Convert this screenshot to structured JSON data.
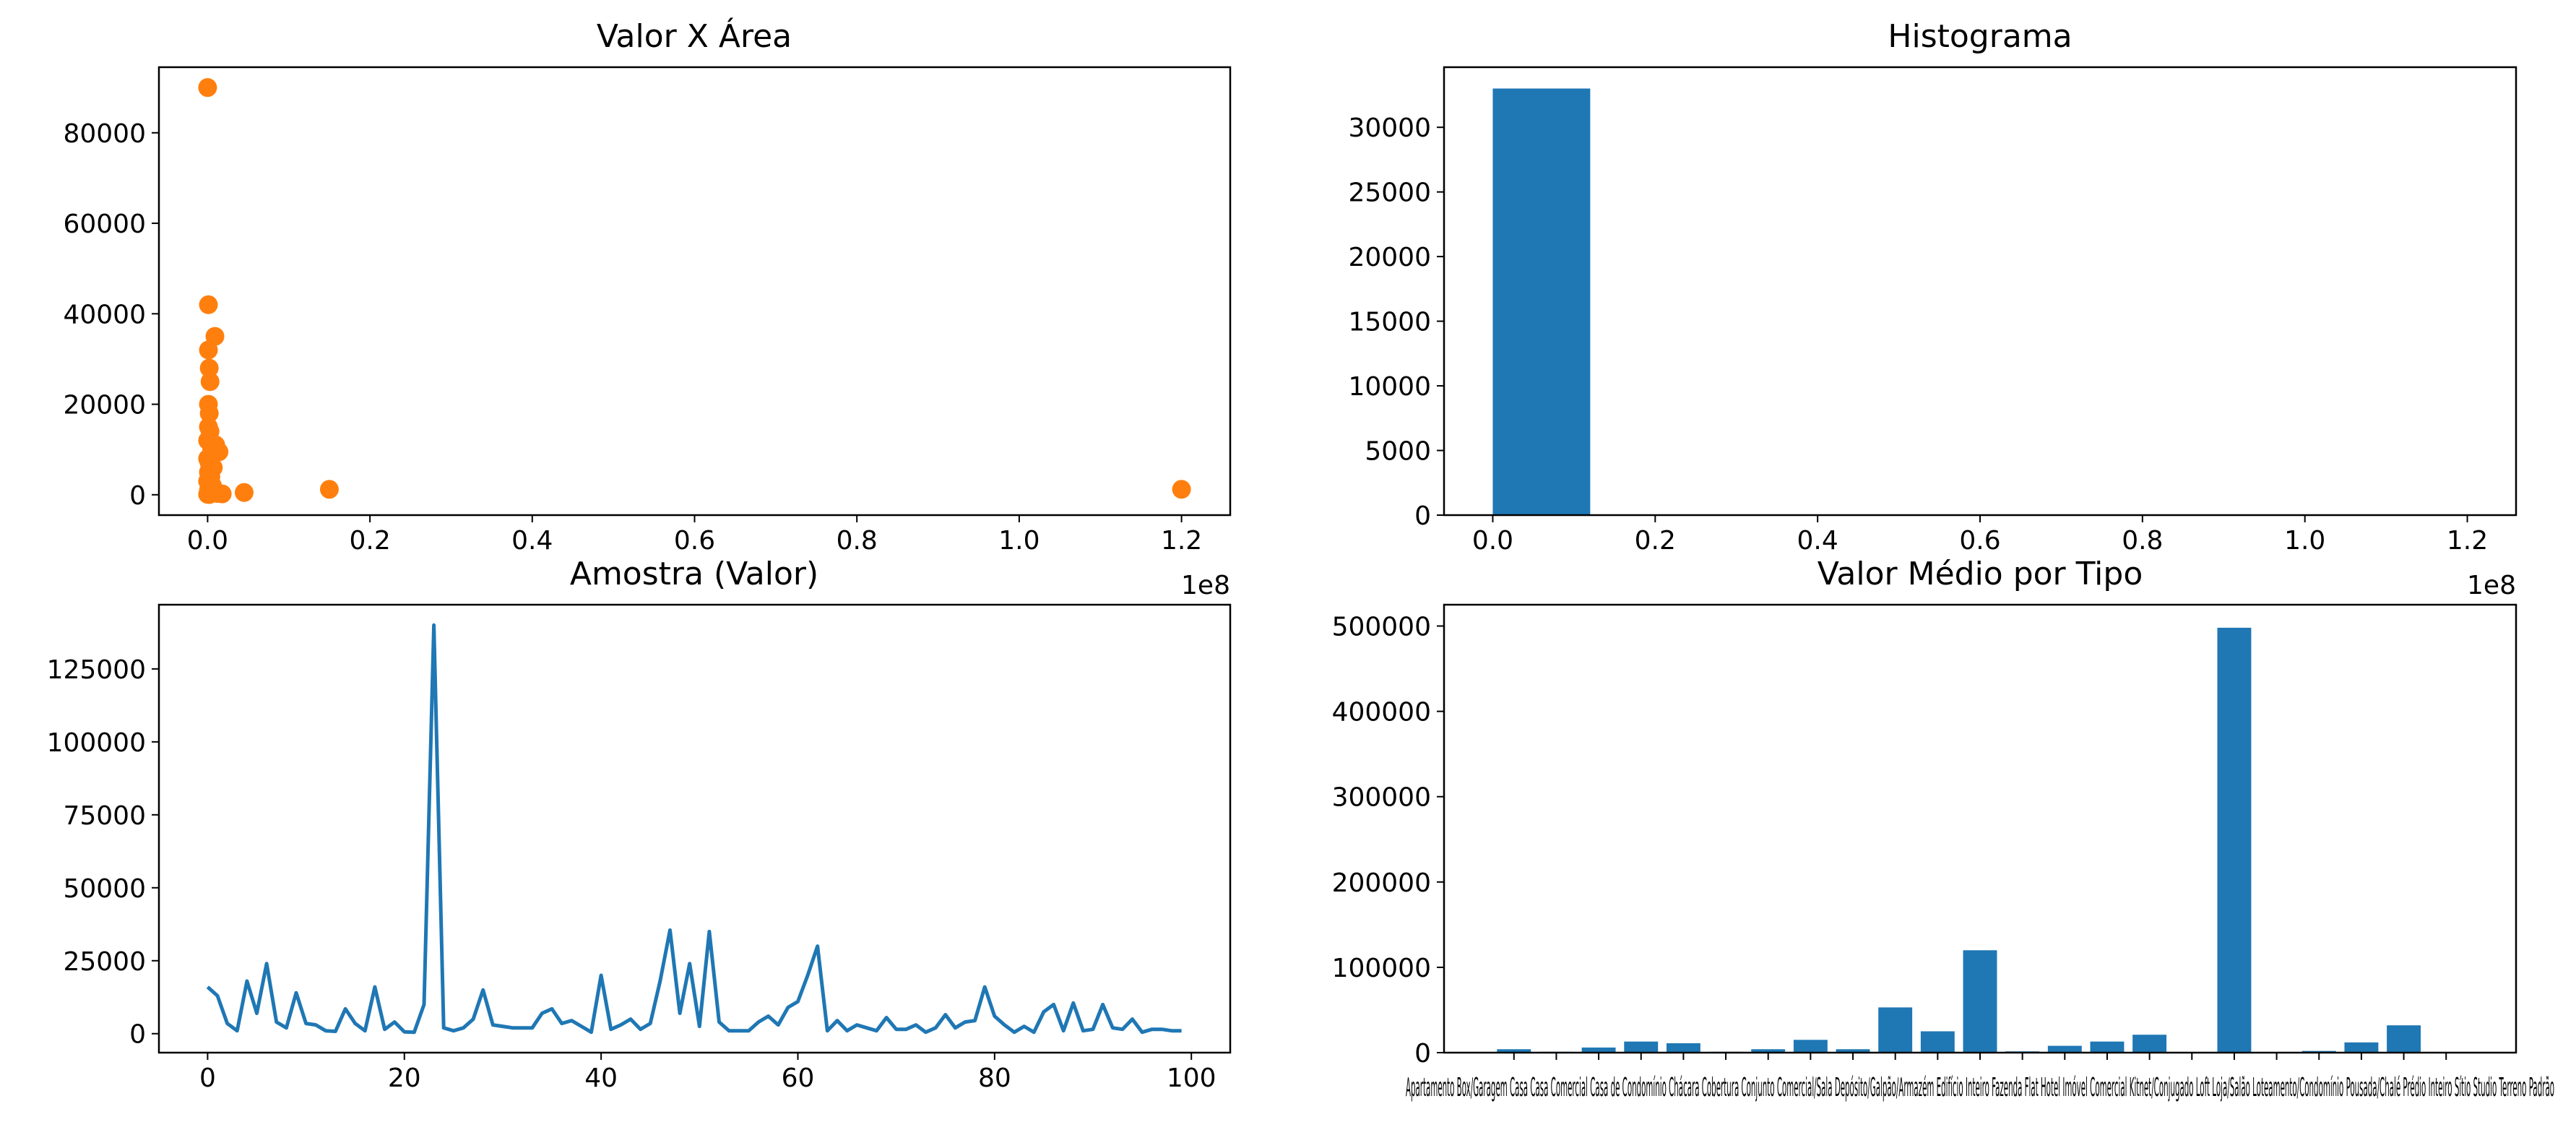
{
  "chart_data": [
    {
      "type": "scatter",
      "title": "Valor X Área",
      "xlabel": "",
      "ylabel": "",
      "color": "#ff7f0e",
      "x_multiplier_label": "1e8",
      "xlim": [
        -0.06,
        1.26
      ],
      "ylim": [
        -4500,
        94500
      ],
      "xticks": [
        0.0,
        0.2,
        0.4,
        0.6,
        0.8,
        1.0,
        1.2
      ],
      "xtick_labels": [
        "0.0",
        "0.2",
        "0.4",
        "0.6",
        "0.8",
        "1.0",
        "1.2"
      ],
      "yticks": [
        0,
        20000,
        40000,
        60000,
        80000
      ],
      "ytick_labels": [
        "0",
        "20000",
        "40000",
        "60000",
        "80000"
      ],
      "points": [
        {
          "x": 0.0,
          "y": 90000
        },
        {
          "x": 0.001,
          "y": 42000
        },
        {
          "x": 0.009,
          "y": 35000
        },
        {
          "x": 0.001,
          "y": 32000
        },
        {
          "x": 0.002,
          "y": 28000
        },
        {
          "x": 0.003,
          "y": 25000
        },
        {
          "x": 0.001,
          "y": 20000
        },
        {
          "x": 0.002,
          "y": 18000
        },
        {
          "x": 0.001,
          "y": 15000
        },
        {
          "x": 0.003,
          "y": 14000
        },
        {
          "x": 0.0,
          "y": 12000
        },
        {
          "x": 0.01,
          "y": 11000
        },
        {
          "x": 0.014,
          "y": 9500
        },
        {
          "x": 0.005,
          "y": 10000
        },
        {
          "x": 0.0,
          "y": 8000
        },
        {
          "x": 0.002,
          "y": 7000
        },
        {
          "x": 0.007,
          "y": 6000
        },
        {
          "x": 0.001,
          "y": 5000
        },
        {
          "x": 0.004,
          "y": 4000
        },
        {
          "x": 0.0,
          "y": 3000
        },
        {
          "x": 0.006,
          "y": 2000
        },
        {
          "x": 0.003,
          "y": 1500
        },
        {
          "x": 0.001,
          "y": 1000
        },
        {
          "x": 0.009,
          "y": 600
        },
        {
          "x": 0.012,
          "y": 300
        },
        {
          "x": 0.0,
          "y": 100
        },
        {
          "x": 0.002,
          "y": 50
        },
        {
          "x": 0.018,
          "y": 200
        },
        {
          "x": 0.045,
          "y": 500
        },
        {
          "x": 0.15,
          "y": 1200
        },
        {
          "x": 1.2,
          "y": 1200
        }
      ]
    },
    {
      "type": "bar",
      "title": "Histograma",
      "xlabel": "",
      "ylabel": "",
      "color": "#1f77b4",
      "x_multiplier_label": "1e8",
      "xlim": [
        -0.06,
        1.26
      ],
      "ylim": [
        0,
        34650
      ],
      "xticks": [
        0.0,
        0.2,
        0.4,
        0.6,
        0.8,
        1.0,
        1.2
      ],
      "xtick_labels": [
        "0.0",
        "0.2",
        "0.4",
        "0.6",
        "0.8",
        "1.0",
        "1.2"
      ],
      "yticks": [
        0,
        5000,
        10000,
        15000,
        20000,
        25000,
        30000
      ],
      "ytick_labels": [
        "0",
        "5000",
        "10000",
        "15000",
        "20000",
        "25000",
        "30000"
      ],
      "bins": [
        {
          "start": 0.0,
          "end": 0.12,
          "count": 33000
        },
        {
          "start": 0.12,
          "end": 0.24,
          "count": 1
        },
        {
          "start": 0.24,
          "end": 0.36,
          "count": 0
        },
        {
          "start": 0.36,
          "end": 0.48,
          "count": 0
        },
        {
          "start": 0.48,
          "end": 0.6,
          "count": 0
        },
        {
          "start": 0.6,
          "end": 0.72,
          "count": 0
        },
        {
          "start": 0.72,
          "end": 0.84,
          "count": 0
        },
        {
          "start": 0.84,
          "end": 0.96,
          "count": 0
        },
        {
          "start": 0.96,
          "end": 1.08,
          "count": 0
        },
        {
          "start": 1.08,
          "end": 1.2,
          "count": 1
        }
      ]
    },
    {
      "type": "line",
      "title": "Amostra (Valor)",
      "xlabel": "",
      "ylabel": "",
      "color": "#1f77b4",
      "xlim": [
        -4.95,
        103.95
      ],
      "ylim": [
        -6500,
        147000
      ],
      "xticks": [
        0,
        20,
        40,
        60,
        80,
        100
      ],
      "xtick_labels": [
        "0",
        "20",
        "40",
        "60",
        "80",
        "100"
      ],
      "yticks": [
        0,
        25000,
        50000,
        75000,
        100000,
        125000
      ],
      "ytick_labels": [
        "0",
        "25000",
        "50000",
        "75000",
        "100000",
        "125000"
      ],
      "x": [
        0,
        1,
        2,
        3,
        4,
        5,
        6,
        7,
        8,
        9,
        10,
        11,
        12,
        13,
        14,
        15,
        16,
        17,
        18,
        19,
        20,
        21,
        22,
        23,
        24,
        25,
        26,
        27,
        28,
        29,
        30,
        31,
        32,
        33,
        34,
        35,
        36,
        37,
        38,
        39,
        40,
        41,
        42,
        43,
        44,
        45,
        46,
        47,
        48,
        49,
        50,
        51,
        52,
        53,
        54,
        55,
        56,
        57,
        58,
        59,
        60,
        61,
        62,
        63,
        64,
        65,
        66,
        67,
        68,
        69,
        70,
        71,
        72,
        73,
        74,
        75,
        76,
        77,
        78,
        79,
        80,
        81,
        82,
        83,
        84,
        85,
        86,
        87,
        88,
        89,
        90,
        91,
        92,
        93,
        94,
        95,
        96,
        97,
        98,
        99
      ],
      "y": [
        16000,
        13000,
        3500,
        1000,
        18000,
        7000,
        24000,
        4000,
        2000,
        14000,
        3500,
        3000,
        1000,
        800,
        8500,
        3500,
        1000,
        16000,
        1500,
        4000,
        600,
        500,
        10000,
        140000,
        2000,
        1000,
        2000,
        5000,
        15000,
        3000,
        2500,
        2000,
        2000,
        2000,
        7000,
        8500,
        3500,
        4500,
        2500,
        500,
        20000,
        1500,
        3000,
        5000,
        1500,
        3500,
        18000,
        35500,
        7000,
        24000,
        2500,
        35000,
        4000,
        1000,
        1000,
        1000,
        4000,
        6000,
        3000,
        9000,
        11000,
        20000,
        30000,
        1000,
        4500,
        1000,
        3000,
        2000,
        1000,
        5500,
        1500,
        1500,
        3000,
        500,
        2000,
        6500,
        2000,
        4000,
        4500,
        16000,
        6000,
        3000,
        500,
        2500,
        500,
        7500,
        10000,
        1000,
        10500,
        1000,
        1500,
        10000,
        2000,
        1500,
        5000,
        500,
        1500,
        1500,
        1000,
        1000
      ]
    },
    {
      "type": "bar",
      "title": "Valor Médio por Tipo",
      "xlabel": "",
      "ylabel": "",
      "color": "#1f77b4",
      "ylim": [
        0,
        525000
      ],
      "yticks": [
        0,
        100000,
        200000,
        300000,
        400000,
        500000
      ],
      "ytick_labels": [
        "0",
        "100000",
        "200000",
        "300000",
        "400000",
        "500000"
      ],
      "categories": [
        "Apartamento",
        "Box/Garagem",
        "Casa",
        "Casa Comercial",
        "Casa de Condomínio",
        "Chácara",
        "Cobertura",
        "Conjunto Comercial/Sala",
        "Depósito/Galpão/Armazém",
        "Edifício Inteiro",
        "Fazenda",
        "Flat",
        "Hotel",
        "Imóvel Comercial",
        "Kitnet/Conjugado",
        "Loft",
        "Loja/Salão",
        "Loteamento/Condomínio",
        "Pousada/Chalé",
        "Prédio Inteiro",
        "Sítio",
        "Studio",
        "Terreno Padrão"
      ],
      "values": [
        4000,
        1000,
        6000,
        13000,
        11000,
        1000,
        4000,
        15000,
        4000,
        53000,
        25000,
        120000,
        1500,
        8000,
        13000,
        21000,
        500,
        498000,
        500,
        2000,
        12000,
        32000,
        500
      ],
      "category_label_line": "Apartamento Box/Garagem Casa Casa Comercial Casa de Condomínio Chácara Cobertura Conjunto Comercial/Sala Depósito/Galpão/Armazém Edifício Inteiro Fazenda Flat Hotel Imóvel Comercial Kitnet/Conjugado Loft Loja/Salão Loteamento/Condomínio Pousada/Chalé Prédio Inteiro Sítio Studio Terreno Padrão"
    }
  ]
}
